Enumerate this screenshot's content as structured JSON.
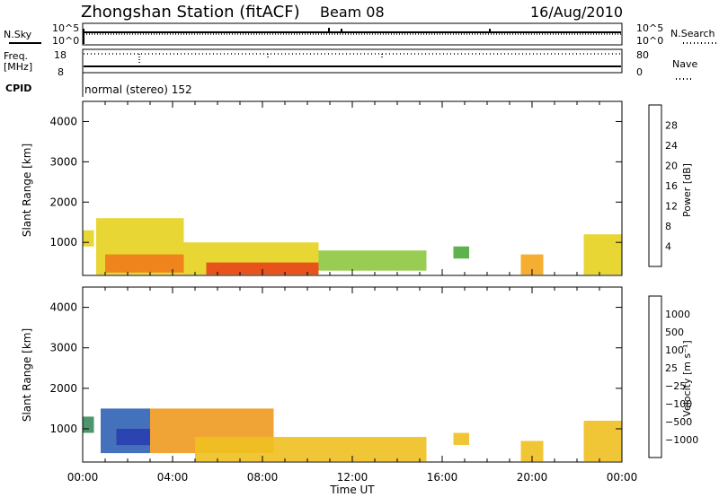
{
  "header": {
    "station": "Zhongshan Station (fitACF)",
    "beam": "Beam 08",
    "date": "16/Aug/2010"
  },
  "colors": {
    "power_scale": [
      "#1f22d6",
      "#2f64b8",
      "#3e8c6a",
      "#4caa3a",
      "#8ec63f",
      "#e6d21f",
      "#f5a51c",
      "#f07a1a",
      "#e84418",
      "#df1212"
    ],
    "velocity_scale": [
      "#2a3fb0",
      "#2f62b4",
      "#3a8a5a",
      "#5aaa3a",
      "#bdbdbd",
      "#f0c020",
      "#f09a20",
      "#ee6a18",
      "#e83a14",
      "#dc1010"
    ]
  },
  "chart_data": [
    {
      "type": "line",
      "title": "N.Sky / N.Search",
      "ylabel_left": "N.Sky",
      "ylabel_right": "N.Search",
      "ytick_left": [
        "10^5",
        "10^0"
      ],
      "ytick_right": [
        "10^5",
        "10^0"
      ],
      "x_range_hours": [
        0,
        24
      ]
    },
    {
      "type": "line",
      "title": "Freq / Nave",
      "ylabel_left": "Freq.",
      "ylabel_left_unit": "[MHz]",
      "ylabel_right": "Nave",
      "ytick_left": [
        "18",
        "8"
      ],
      "ytick_right": [
        "80",
        "0"
      ],
      "x_range_hours": [
        0,
        24
      ]
    },
    {
      "type": "table",
      "label": "CPID",
      "value": "normal (stereo) 152"
    },
    {
      "type": "heatmap",
      "quantity": "power",
      "xlabel": "Time UT",
      "ylabel": "Slant Range [km]",
      "ylim": [
        180,
        4500
      ],
      "yticks": [
        "1000",
        "2000",
        "3000",
        "4000"
      ],
      "xlim_hours": [
        0,
        24
      ],
      "colorbar_label": "Power [dB]",
      "colorbar_ticks": [
        "4",
        "8",
        "12",
        "16",
        "20",
        "24",
        "28"
      ],
      "echo_regions": [
        {
          "t0": 0.0,
          "t1": 0.5,
          "r0": 900,
          "r1": 1300,
          "value": 18
        },
        {
          "t0": 0.6,
          "t1": 4.5,
          "r0": 200,
          "r1": 1600,
          "value": 16
        },
        {
          "t0": 1.0,
          "t1": 4.5,
          "r0": 250,
          "r1": 700,
          "value": 24
        },
        {
          "t0": 4.5,
          "t1": 10.5,
          "r0": 200,
          "r1": 1000,
          "value": 18
        },
        {
          "t0": 5.5,
          "t1": 10.5,
          "r0": 200,
          "r1": 500,
          "value": 28
        },
        {
          "t0": 10.5,
          "t1": 15.3,
          "r0": 300,
          "r1": 800,
          "value": 14
        },
        {
          "t0": 16.5,
          "t1": 17.2,
          "r0": 600,
          "r1": 900,
          "value": 12
        },
        {
          "t0": 19.5,
          "t1": 20.5,
          "r0": 200,
          "r1": 700,
          "value": 22
        },
        {
          "t0": 22.3,
          "t1": 24.0,
          "r0": 200,
          "r1": 1200,
          "value": 18
        }
      ]
    },
    {
      "type": "heatmap",
      "quantity": "velocity",
      "xlabel": "Time UT",
      "ylabel": "Slant Range [km]",
      "ylim": [
        180,
        4500
      ],
      "yticks": [
        "1000",
        "2000",
        "3000",
        "4000"
      ],
      "xlim_hours": [
        0,
        24
      ],
      "xticks": [
        "00:00",
        "04:00",
        "08:00",
        "12:00",
        "16:00",
        "20:00",
        "00:00"
      ],
      "colorbar_label": "Velocity [m s⁻¹]",
      "colorbar_ticks": [
        "1000",
        "500",
        "100",
        "25",
        "−25",
        "−100",
        "−500",
        "−1000"
      ],
      "echo_regions": [
        {
          "t0": 0.0,
          "t1": 0.5,
          "r0": 900,
          "r1": 1300,
          "value": 100
        },
        {
          "t0": 0.8,
          "t1": 3.0,
          "r0": 400,
          "r1": 1500,
          "value": 500
        },
        {
          "t0": 1.5,
          "t1": 3.0,
          "r0": 600,
          "r1": 1000,
          "value": 1000
        },
        {
          "t0": 3.0,
          "t1": 8.5,
          "r0": 400,
          "r1": 1500,
          "value": -500
        },
        {
          "t0": 5.0,
          "t1": 15.3,
          "r0": 200,
          "r1": 800,
          "value": -100
        },
        {
          "t0": 16.5,
          "t1": 17.2,
          "r0": 600,
          "r1": 900,
          "value": -100
        },
        {
          "t0": 19.5,
          "t1": 20.5,
          "r0": 200,
          "r1": 700,
          "value": -100
        },
        {
          "t0": 22.3,
          "t1": 24.0,
          "r0": 200,
          "r1": 1200,
          "value": -100
        }
      ]
    }
  ]
}
